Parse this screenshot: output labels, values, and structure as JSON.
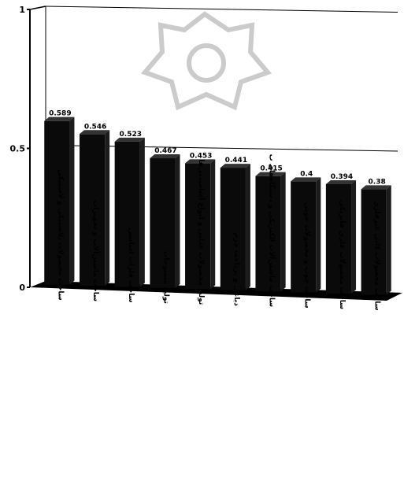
{
  "chart_data": {
    "type": "bar",
    "title": "",
    "xlabel": "",
    "ylabel": "",
    "ylim": [
      0,
      1
    ],
    "yticks": [
      "0",
      "0.5",
      "1"
    ],
    "grid": true,
    "legend": "none",
    "three_d": true,
    "colors": {
      "bar": "#0a0a0a",
      "grid": "#000000",
      "floor": "#000000",
      "background": "#ffffff"
    },
    "categories": [
      "ساخت محصولات پلاستیکی و لاستیکی",
      "ساخت ماشین‌آلات و تجهیزات",
      "ساخت فلزات اساسی",
      "تولید منسوجات",
      "تولید محصولات غذایی و انواع آشامیدنی‌ها",
      "دباغی و پرداخت چرم",
      "ساخت ماشین‌آلات الکتریکی و دستگاه‌های ب",
      "ساخت چوب و محصولات چوبی",
      "ساخت محصولات فلزی فابریکی",
      "ساخت محصولات کانی غیرفلزی"
    ],
    "values": [
      0.589,
      0.546,
      0.523,
      0.467,
      0.453,
      0.441,
      0.415,
      0.4,
      0.394,
      0.38
    ],
    "value_labels": [
      "0.589",
      "0.546",
      "0.523",
      "0.467",
      "0.453",
      "0.441",
      "0.415",
      "0.4",
      "0.394",
      "0.38"
    ]
  }
}
